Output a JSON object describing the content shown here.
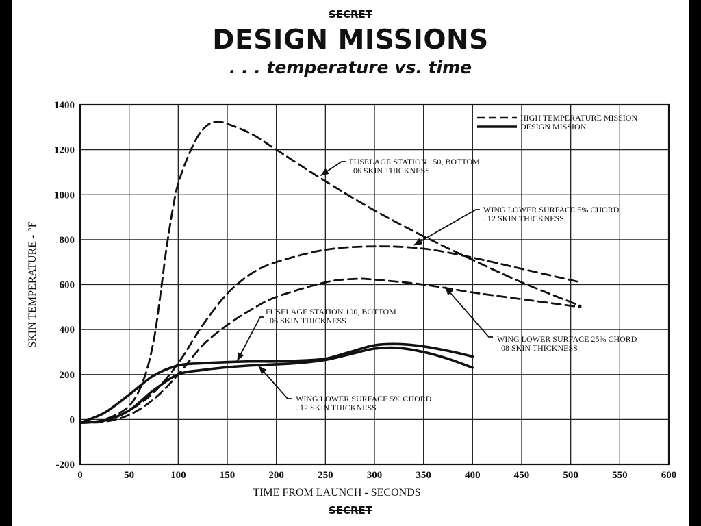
{
  "header": {
    "classification_top": "SECRET",
    "title": "DESIGN MISSIONS",
    "subtitle": ". . . temperature vs. time",
    "classification_bottom": "SECRET"
  },
  "chart_data": {
    "type": "line",
    "xlabel": "TIME FROM LAUNCH - SECONDS",
    "ylabel": "SKIN TEMPERATURE - °F",
    "xlim": [
      0,
      600
    ],
    "ylim": [
      -200,
      1400
    ],
    "xticks": [
      0,
      50,
      100,
      150,
      200,
      250,
      300,
      350,
      400,
      450,
      500,
      550,
      600
    ],
    "yticks": [
      -200,
      0,
      200,
      400,
      600,
      800,
      1000,
      1200,
      1400
    ],
    "grid": true,
    "legend_position": "top-right",
    "legend": [
      {
        "label": "HIGH TEMPERATURE MISSION",
        "style": "dashed"
      },
      {
        "label": "DESIGN MISSION",
        "style": "solid"
      }
    ],
    "series": [
      {
        "mission": "high",
        "style": "dashed",
        "x": [
          0,
          25,
          50,
          65,
          75,
          82,
          88,
          95,
          100,
          110,
          120,
          130,
          140,
          150,
          175,
          200,
          250,
          300,
          350,
          400,
          450,
          510
        ],
        "y": [
          -15,
          0,
          60,
          180,
          350,
          560,
          760,
          950,
          1050,
          1170,
          1260,
          1310,
          1325,
          1315,
          1270,
          1200,
          1060,
          930,
          815,
          710,
          610,
          505
        ]
      },
      {
        "mission": "high",
        "style": "dashed",
        "x": [
          0,
          25,
          50,
          75,
          100,
          125,
          150,
          175,
          200,
          250,
          300,
          350,
          400,
          450,
          510
        ],
        "y": [
          -15,
          -5,
          40,
          120,
          250,
          420,
          560,
          650,
          700,
          755,
          770,
          760,
          720,
          670,
          610
        ]
      },
      {
        "mission": "high",
        "style": "dashed",
        "x": [
          0,
          25,
          50,
          75,
          100,
          125,
          150,
          175,
          200,
          250,
          280,
          300,
          350,
          400,
          450,
          510
        ],
        "y": [
          -15,
          -10,
          20,
          90,
          200,
          330,
          420,
          490,
          545,
          610,
          625,
          622,
          600,
          565,
          535,
          500
        ]
      },
      {
        "mission": "design",
        "style": "solid",
        "x": [
          0,
          25,
          50,
          75,
          100,
          125,
          150,
          175,
          200,
          225,
          250,
          275,
          300,
          325,
          350,
          375,
          400
        ],
        "y": [
          -15,
          30,
          110,
          195,
          240,
          250,
          255,
          258,
          258,
          262,
          270,
          300,
          330,
          335,
          325,
          305,
          280
        ]
      },
      {
        "mission": "design",
        "style": "solid",
        "x": [
          0,
          25,
          50,
          75,
          100,
          125,
          150,
          175,
          200,
          225,
          250,
          275,
          300,
          325,
          350,
          375,
          400
        ],
        "y": [
          -15,
          -5,
          40,
          130,
          200,
          220,
          232,
          240,
          245,
          252,
          265,
          290,
          315,
          318,
          300,
          270,
          230
        ]
      }
    ],
    "annotations": [
      {
        "lines": [
          "FUSELAGE STATION 150, BOTTOM",
          ". 06 SKIN THICKNESS"
        ],
        "target": [
          245,
          1085
        ]
      },
      {
        "lines": [
          "WING LOWER SURFACE 5% CHORD",
          ". 12 SKIN THICKNESS"
        ],
        "target": [
          340,
          775
        ]
      },
      {
        "lines": [
          "FUSELAGE STATION 100, BOTTOM",
          ". 06 SKIN THICKNESS"
        ],
        "target": [
          160,
          260
        ]
      },
      {
        "lines": [
          "WING LOWER SURFACE 25% CHORD",
          ". 08 SKIN THICKNESS"
        ],
        "target": [
          372,
          590
        ]
      },
      {
        "lines": [
          "WING LOWER SURFACE 5% CHORD",
          ". 12 SKIN THICKNESS"
        ],
        "target": [
          182,
          238
        ]
      }
    ]
  }
}
